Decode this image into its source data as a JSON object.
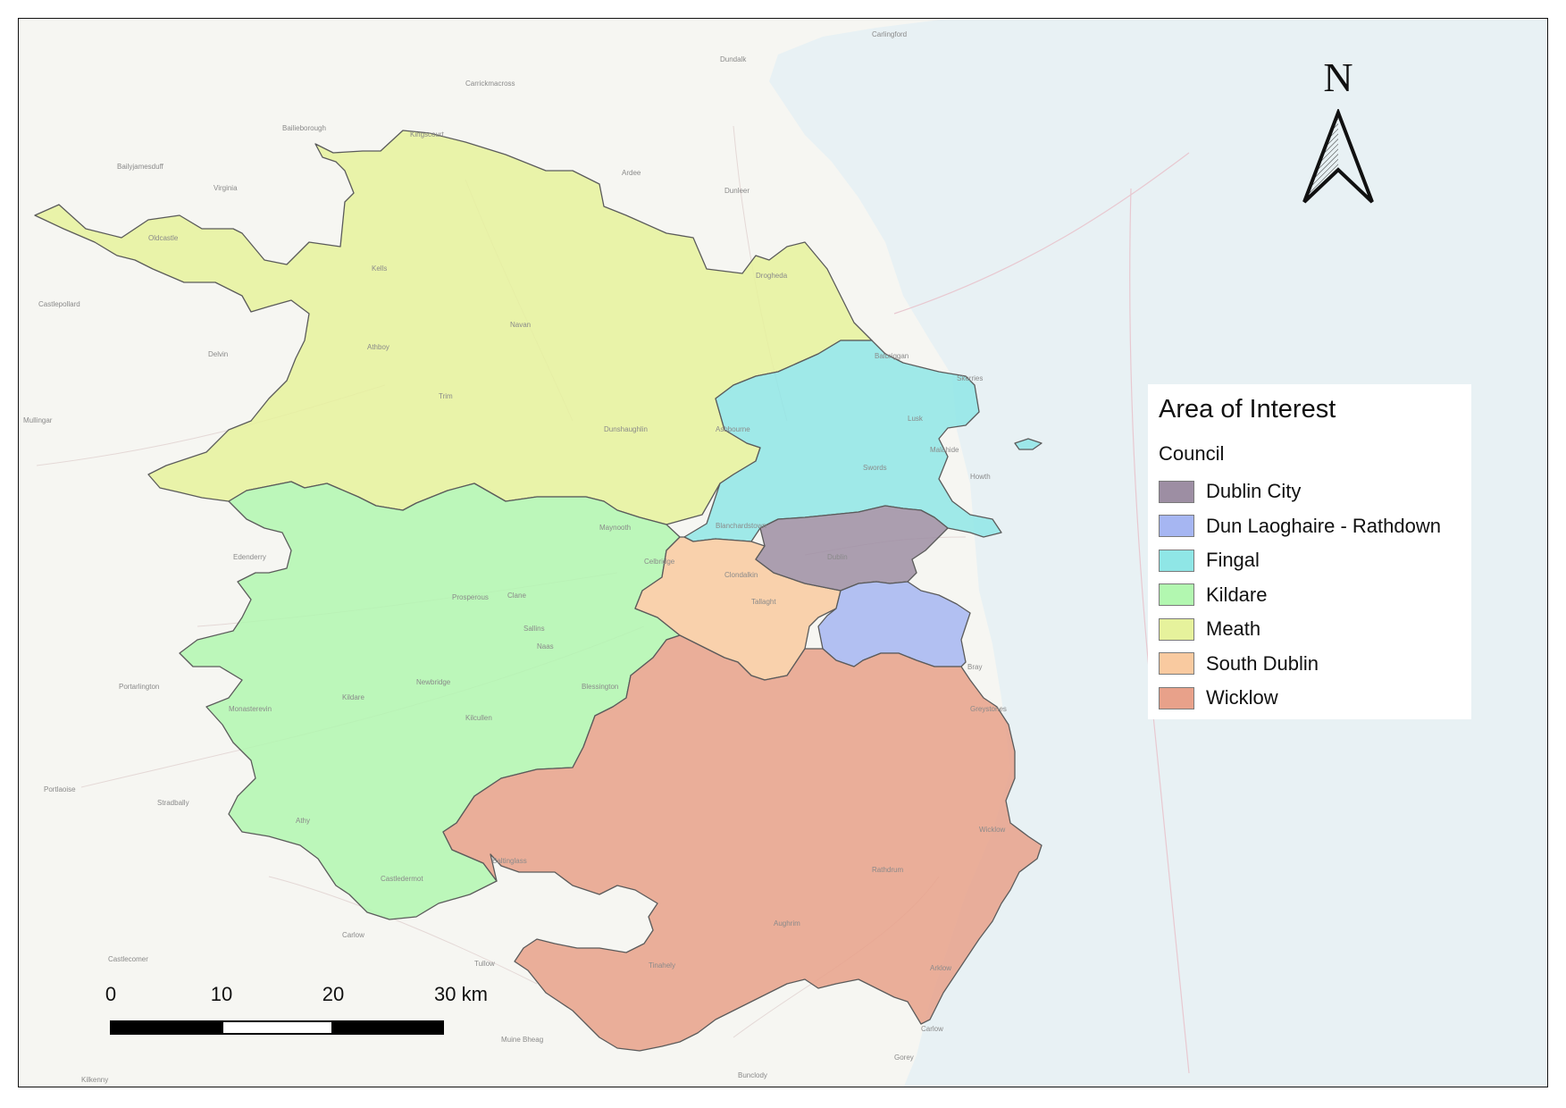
{
  "map": {
    "basemap_labels": [
      "Carlingford",
      "Dundalk",
      "Carrickmacross",
      "Bailieborough",
      "Kingscourt",
      "Bailyjamesduff",
      "Virginia",
      "Ardee",
      "Dunleer",
      "Oldcastle",
      "Kells",
      "Navan",
      "Athboy",
      "Trim",
      "Castlepollard",
      "Delvin",
      "Mullingar",
      "Dunshaughlin",
      "Ashbourne",
      "Drogheda",
      "Balbriggan",
      "Skerries",
      "Lusk",
      "Swords",
      "Malahide",
      "Howth",
      "Blanchardstown",
      "Dublin",
      "Clondalkin",
      "Tallaght",
      "Edenderry",
      "Celbridge",
      "Maynooth",
      "Prosperous",
      "Clane",
      "Sallins",
      "Naas",
      "Newbridge",
      "Kildare",
      "Kilcullen",
      "Blessington",
      "Monasterevin",
      "Portarlington",
      "Portlaoise",
      "Stradbally",
      "Athy",
      "Castledermot",
      "Carlow",
      "Castlecomer",
      "Tullow",
      "Baltinglass",
      "Tinahely",
      "Aughrim",
      "Rathdrum",
      "Arklow",
      "Wicklow",
      "Greystones",
      "Bray",
      "Gorey",
      "Bunclody",
      "Kilkenny",
      "Muine Bheag",
      "Carlow"
    ],
    "legend": {
      "title": "Area of Interest",
      "subtitle": "Council",
      "items": [
        {
          "label": "Dublin City",
          "color": "#9d8ea3"
        },
        {
          "label": "Dun Laoghaire - Rathdown",
          "color": "#a6b6f2"
        },
        {
          "label": "Fingal",
          "color": "#8fe6e6"
        },
        {
          "label": "Kildare",
          "color": "#b2f7b0"
        },
        {
          "label": "Meath",
          "color": "#e6f29c"
        },
        {
          "label": "South Dublin",
          "color": "#f9caa0"
        },
        {
          "label": "Wicklow",
          "color": "#e8a18a"
        }
      ]
    },
    "north_arrow": {
      "letter": "N"
    },
    "scale_bar": {
      "labels": [
        "0",
        "10",
        "20",
        "30 km"
      ]
    },
    "colors": {
      "sea": "#e8f1f4",
      "land": "#f6f6f2",
      "region_stroke": "#5b5b5b"
    }
  }
}
